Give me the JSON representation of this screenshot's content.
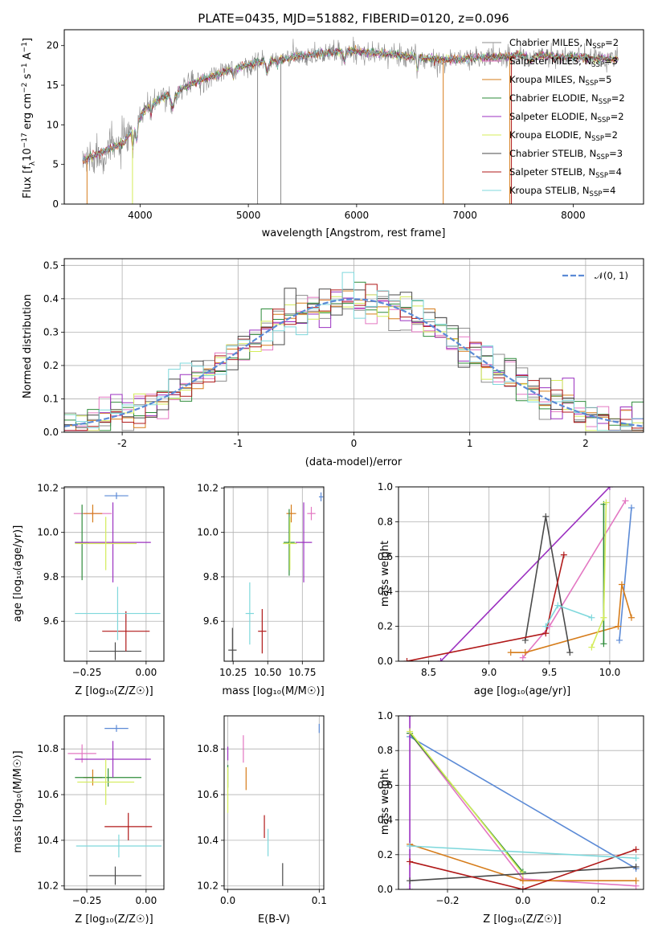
{
  "colors": {
    "chabrier_miles": "#8c8c8c",
    "salpeter_miles": "#e377c2",
    "kroupa_miles": "#d67c1a",
    "chabrier_elodie": "#2e8b3a",
    "salpeter_elodie": "#9b30c0",
    "kroupa_elodie": "#d4ec5a",
    "chabrier_stelib": "#4a4a4a",
    "salpeter_stelib": "#b01818",
    "kroupa_stelib": "#7fd8dc",
    "accent_blue": "#5b8ad6"
  },
  "chart_data": [
    {
      "id": "spectrum",
      "type": "line",
      "title": "PLATE=0435, MJD=51882, FIBERID=0120, z=0.096",
      "xlabel": "wavelength [Angstrom, rest frame]",
      "ylabel_parts": [
        "Flux [f",
        "λ",
        "10",
        "−17",
        " erg cm",
        "−2",
        " s",
        "−1",
        " A",
        "−1",
        "]"
      ],
      "xlim": [
        3300,
        8650
      ],
      "ylim": [
        0,
        22
      ],
      "xticks": [
        4000,
        5000,
        6000,
        7000,
        8000
      ],
      "yticks": [
        0,
        5,
        10,
        15,
        20
      ],
      "grid": false,
      "legend_location": "upper right",
      "continuum_knots": {
        "x": [
          3470,
          3650,
          3850,
          3950,
          4050,
          4250,
          4500,
          4800,
          5100,
          5500,
          5900,
          6300,
          6800,
          7200,
          7600,
          8000,
          8400
        ],
        "y": [
          5.5,
          6.5,
          7.8,
          9.8,
          12.0,
          13.8,
          15.3,
          16.8,
          17.9,
          18.7,
          19.4,
          18.9,
          18.2,
          18.5,
          18.8,
          18.5,
          18.3
        ]
      },
      "series": [
        {
          "name": "Chabrier MILES",
          "nssp": "2",
          "color_key": "chabrier_miles"
        },
        {
          "name": "Salpeter MILES",
          "nssp": "3",
          "color_key": "salpeter_miles"
        },
        {
          "name": "Kroupa MILES",
          "nssp": "5",
          "color_key": "kroupa_miles"
        },
        {
          "name": "Chabrier ELODIE",
          "nssp": "2",
          "color_key": "chabrier_elodie"
        },
        {
          "name": "Salpeter ELODIE",
          "nssp": "2",
          "color_key": "salpeter_elodie"
        },
        {
          "name": "Kroupa ELODIE",
          "nssp": "2",
          "color_key": "kroupa_elodie"
        },
        {
          "name": "Chabrier STELIB",
          "nssp": "3",
          "color_key": "chabrier_stelib"
        },
        {
          "name": "Salpeter STELIB",
          "nssp": "4",
          "color_key": "salpeter_stelib"
        },
        {
          "name": "Kroupa STELIB",
          "nssp": "4",
          "color_key": "kroupa_stelib"
        }
      ],
      "drops": [
        {
          "x": 5085,
          "color_key": "chabrier_miles"
        },
        {
          "x": 5300,
          "color_key": "chabrier_miles"
        },
        {
          "x": 6800,
          "color_key": "kroupa_miles"
        },
        {
          "x": 7415,
          "color_key": "kroupa_miles"
        },
        {
          "x": 3510,
          "color_key": "kroupa_miles"
        },
        {
          "x": 3930,
          "color_key": "kroupa_elodie"
        },
        {
          "x": 7430,
          "color_key": "salpeter_stelib"
        }
      ]
    },
    {
      "id": "residual_histogram",
      "type": "line",
      "xlabel": "(data-model)/error",
      "ylabel": "Normed distribution",
      "xlim": [
        -2.5,
        2.5
      ],
      "ylim": [
        0,
        0.52
      ],
      "xticks": [
        -2,
        -1,
        0,
        1,
        2
      ],
      "yticks": [
        0.0,
        0.1,
        0.2,
        0.3,
        0.4,
        0.5
      ],
      "grid": true,
      "legend_location": "upper right",
      "gaussian": {
        "label": "𝒩(0, 1)",
        "mean": 0,
        "sigma": 1,
        "color_key": "accent_blue"
      },
      "bin_width": 0.1,
      "series_color_keys": [
        "chabrier_miles",
        "salpeter_miles",
        "kroupa_miles",
        "chabrier_elodie",
        "salpeter_elodie",
        "kroupa_elodie",
        "chabrier_stelib",
        "salpeter_stelib",
        "kroupa_stelib"
      ]
    },
    {
      "id": "age_vs_z",
      "type": "scatter",
      "xlabel": "Z [log₁₀(Z/Z☉)]",
      "ylabel": "age  [log₁₀(age/yr)]",
      "xlim": [
        -0.345,
        0.075
      ],
      "ylim": [
        9.42,
        10.205
      ],
      "xticks": [
        -0.25,
        0.0
      ],
      "xticklabels": [
        "−0.25",
        "0.00"
      ],
      "yticks": [
        9.6,
        9.8,
        10.0,
        10.2
      ],
      "grid": true,
      "points": [
        {
          "x": -0.125,
          "xerr": 0.05,
          "y": 10.165,
          "yerr": 0.015,
          "color_key": "accent_blue"
        },
        {
          "x": -0.225,
          "xerr": 0.08,
          "y": 10.085,
          "yerr": 0.01,
          "color_key": "salpeter_miles"
        },
        {
          "x": -0.225,
          "xerr": 0.04,
          "y": 10.085,
          "yerr": 0.04,
          "color_key": "kroupa_miles"
        },
        {
          "x": -0.27,
          "xerr": 0.03,
          "y": 9.955,
          "yerr": 0.17,
          "color_key": "chabrier_elodie"
        },
        {
          "x": -0.14,
          "xerr": 0.16,
          "y": 9.955,
          "yerr": 0.18,
          "color_key": "salpeter_elodie"
        },
        {
          "x": -0.17,
          "xerr": 0.13,
          "y": 9.95,
          "yerr": 0.12,
          "color_key": "kroupa_elodie"
        },
        {
          "x": -0.13,
          "xerr": 0.11,
          "y": 9.465,
          "yerr": 0.04,
          "color_key": "chabrier_stelib"
        },
        {
          "x": -0.085,
          "xerr": 0.1,
          "y": 9.555,
          "yerr": 0.09,
          "color_key": "salpeter_stelib"
        },
        {
          "x": -0.12,
          "xerr": 0.18,
          "y": 9.635,
          "yerr": 0.12,
          "color_key": "kroupa_stelib"
        }
      ]
    },
    {
      "id": "age_vs_mass",
      "type": "scatter",
      "xlabel": "mass [log₁₀(M/M☉)]",
      "ylabel": "",
      "xlim": [
        10.185,
        10.905
      ],
      "ylim": [
        9.42,
        10.205
      ],
      "xticks": [
        10.25,
        10.5,
        10.75
      ],
      "xticklabels": [
        "10.25",
        "10.50",
        "10.75"
      ],
      "yticks": [
        9.6,
        9.8,
        10.0,
        10.2
      ],
      "grid": true,
      "points": [
        {
          "x": 10.885,
          "xerr": 0.015,
          "y": 10.16,
          "yerr": 0.02,
          "color_key": "accent_blue"
        },
        {
          "x": 10.815,
          "xerr": 0.03,
          "y": 10.085,
          "yerr": 0.03,
          "color_key": "salpeter_miles"
        },
        {
          "x": 10.67,
          "xerr": 0.035,
          "y": 10.085,
          "yerr": 0.04,
          "color_key": "kroupa_miles"
        },
        {
          "x": 10.655,
          "xerr": 0.04,
          "y": 9.955,
          "yerr": 0.15,
          "color_key": "chabrier_elodie"
        },
        {
          "x": 10.76,
          "xerr": 0.06,
          "y": 9.955,
          "yerr": 0.18,
          "color_key": "salpeter_elodie"
        },
        {
          "x": 10.66,
          "xerr": 0.05,
          "y": 9.95,
          "yerr": 0.12,
          "color_key": "kroupa_elodie"
        },
        {
          "x": 10.245,
          "xerr": 0.03,
          "y": 9.47,
          "yerr": 0.1,
          "color_key": "chabrier_stelib"
        },
        {
          "x": 10.46,
          "xerr": 0.03,
          "y": 9.555,
          "yerr": 0.1,
          "color_key": "salpeter_stelib"
        },
        {
          "x": 10.37,
          "xerr": 0.03,
          "y": 9.635,
          "yerr": 0.14,
          "color_key": "kroupa_stelib"
        }
      ]
    },
    {
      "id": "mass_weight_vs_age",
      "type": "line",
      "xlabel": "age  [log₁₀(age/yr)]",
      "ylabel": "mass weight",
      "xlim": [
        8.25,
        10.28
      ],
      "ylim": [
        0,
        1
      ],
      "xticks": [
        8.5,
        9.0,
        9.5,
        10.0
      ],
      "xticklabels": [
        "8.5",
        "9.0",
        "9.5",
        "10.0"
      ],
      "yticks": [
        0.0,
        0.2,
        0.4,
        0.6,
        0.8,
        1.0
      ],
      "grid": true,
      "series": [
        {
          "color_key": "accent_blue",
          "x": [
            10.08,
            10.18
          ],
          "y": [
            0.12,
            0.88
          ]
        },
        {
          "color_key": "salpeter_miles",
          "x": [
            9.28,
            9.5,
            10.13
          ],
          "y": [
            0.02,
            0.2,
            0.92
          ]
        },
        {
          "color_key": "kroupa_miles",
          "x": [
            9.18,
            9.3,
            10.07,
            10.1,
            10.18
          ],
          "y": [
            0.05,
            0.05,
            0.2,
            0.44,
            0.25
          ]
        },
        {
          "color_key": "chabrier_elodie",
          "x": [
            9.95,
            9.95
          ],
          "y": [
            0.1,
            0.9
          ]
        },
        {
          "color_key": "salpeter_elodie",
          "x": [
            8.6,
            10.0
          ],
          "y": [
            0.0,
            1.0
          ]
        },
        {
          "color_key": "kroupa_elodie",
          "x": [
            9.85,
            9.95,
            9.97
          ],
          "y": [
            0.08,
            0.25,
            0.91
          ]
        },
        {
          "color_key": "chabrier_stelib",
          "x": [
            9.3,
            9.47,
            9.67
          ],
          "y": [
            0.12,
            0.83,
            0.05
          ]
        },
        {
          "color_key": "salpeter_stelib",
          "x": [
            8.32,
            9.47,
            9.62
          ],
          "y": [
            0.0,
            0.16,
            0.61
          ]
        },
        {
          "color_key": "kroupa_stelib",
          "x": [
            9.47,
            9.57,
            9.85
          ],
          "y": [
            0.2,
            0.32,
            0.25
          ]
        }
      ]
    },
    {
      "id": "mass_vs_z",
      "type": "scatter",
      "xlabel": "Z [log₁₀(Z/Z☉)]",
      "ylabel": "mass [log₁₀(M/M☉)]",
      "xlim": [
        -0.345,
        0.075
      ],
      "ylim": [
        10.185,
        10.945
      ],
      "xticks": [
        -0.25,
        0.0
      ],
      "xticklabels": [
        "−0.25",
        "0.00"
      ],
      "yticks": [
        10.2,
        10.4,
        10.6,
        10.8
      ],
      "grid": true,
      "points": [
        {
          "x": -0.125,
          "xerr": 0.05,
          "y": 10.89,
          "yerr": 0.015,
          "color_key": "accent_blue"
        },
        {
          "x": -0.27,
          "xerr": 0.06,
          "y": 10.78,
          "yerr": 0.04,
          "color_key": "salpeter_miles"
        },
        {
          "x": -0.225,
          "xerr": 0.04,
          "y": 10.675,
          "yerr": 0.035,
          "color_key": "kroupa_miles"
        },
        {
          "x": -0.16,
          "xerr": 0.14,
          "y": 10.675,
          "yerr": 0.04,
          "color_key": "chabrier_elodie"
        },
        {
          "x": -0.14,
          "xerr": 0.16,
          "y": 10.755,
          "yerr": 0.08,
          "color_key": "salpeter_elodie"
        },
        {
          "x": -0.17,
          "xerr": 0.12,
          "y": 10.655,
          "yerr": 0.1,
          "color_key": "kroupa_elodie"
        },
        {
          "x": -0.13,
          "xerr": 0.11,
          "y": 10.245,
          "yerr": 0.04,
          "color_key": "chabrier_stelib"
        },
        {
          "x": -0.075,
          "xerr": 0.1,
          "y": 10.46,
          "yerr": 0.06,
          "color_key": "salpeter_stelib"
        },
        {
          "x": -0.115,
          "xerr": 0.18,
          "y": 10.375,
          "yerr": 0.05,
          "color_key": "kroupa_stelib"
        }
      ]
    },
    {
      "id": "mass_vs_ebv",
      "type": "scatter",
      "xlabel": "E(B-V)",
      "ylabel": "",
      "xlim": [
        -0.004,
        0.105
      ],
      "ylim": [
        10.185,
        10.945
      ],
      "xticks": [
        0.0,
        0.1
      ],
      "xticklabels": [
        "0.0",
        "0.1"
      ],
      "yticks": [
        10.2,
        10.4,
        10.6,
        10.8
      ],
      "grid": true,
      "points": [
        {
          "x": 0.1,
          "xerr": 0.0,
          "y": 10.89,
          "yerr": 0.02,
          "color_key": "accent_blue"
        },
        {
          "x": 0.017,
          "xerr": 0.0,
          "y": 10.8,
          "yerr": 0.06,
          "color_key": "salpeter_miles"
        },
        {
          "x": 0.02,
          "xerr": 0.0,
          "y": 10.67,
          "yerr": 0.05,
          "color_key": "kroupa_miles"
        },
        {
          "x": 0.0,
          "xerr": 0.0,
          "y": 10.68,
          "yerr": 0.05,
          "color_key": "chabrier_elodie"
        },
        {
          "x": 0.0,
          "xerr": 0.0,
          "y": 10.78,
          "yerr": 0.03,
          "color_key": "salpeter_elodie"
        },
        {
          "x": 0.0,
          "xerr": 0.0,
          "y": 10.62,
          "yerr": 0.1,
          "color_key": "kroupa_elodie"
        },
        {
          "x": 0.06,
          "xerr": 0.0,
          "y": 10.25,
          "yerr": 0.05,
          "color_key": "chabrier_stelib"
        },
        {
          "x": 0.04,
          "xerr": 0.0,
          "y": 10.46,
          "yerr": 0.05,
          "color_key": "salpeter_stelib"
        },
        {
          "x": 0.044,
          "xerr": 0.0,
          "y": 10.39,
          "yerr": 0.06,
          "color_key": "kroupa_stelib"
        }
      ]
    },
    {
      "id": "mass_weight_vs_z",
      "type": "line",
      "xlabel": "Z [log₁₀(Z/Z☉)]",
      "ylabel": "mass weight",
      "xlim": [
        -0.33,
        0.32
      ],
      "ylim": [
        0,
        1
      ],
      "xticks": [
        -0.2,
        0.0,
        0.2
      ],
      "xticklabels": [
        "−0.2",
        "0.0",
        "0.2"
      ],
      "yticks": [
        0.0,
        0.2,
        0.4,
        0.6,
        0.8,
        1.0
      ],
      "grid": true,
      "series": [
        {
          "color_key": "accent_blue",
          "x": [
            -0.3,
            0.3
          ],
          "y": [
            0.88,
            0.12
          ]
        },
        {
          "color_key": "salpeter_miles",
          "x": [
            -0.3,
            0.0,
            0.3
          ],
          "y": [
            0.9,
            0.06,
            0.02
          ]
        },
        {
          "color_key": "kroupa_miles",
          "x": [
            -0.3,
            0.0,
            0.3
          ],
          "y": [
            0.26,
            0.05,
            0.05
          ]
        },
        {
          "color_key": "chabrier_elodie",
          "x": [
            -0.3,
            0.0
          ],
          "y": [
            0.9,
            0.1
          ]
        },
        {
          "color_key": "salpeter_elodie",
          "x": [
            -0.3,
            -0.3
          ],
          "y": [
            0.0,
            1.0
          ]
        },
        {
          "color_key": "kroupa_elodie",
          "x": [
            -0.3,
            0.0
          ],
          "y": [
            0.91,
            0.09
          ]
        },
        {
          "color_key": "chabrier_stelib",
          "x": [
            -0.3,
            0.3
          ],
          "y": [
            0.05,
            0.13
          ]
        },
        {
          "color_key": "salpeter_stelib",
          "x": [
            -0.3,
            0.0,
            0.3
          ],
          "y": [
            0.16,
            0.0,
            0.23
          ]
        },
        {
          "color_key": "kroupa_stelib",
          "x": [
            -0.3,
            0.3
          ],
          "y": [
            0.25,
            0.18
          ]
        }
      ]
    }
  ]
}
